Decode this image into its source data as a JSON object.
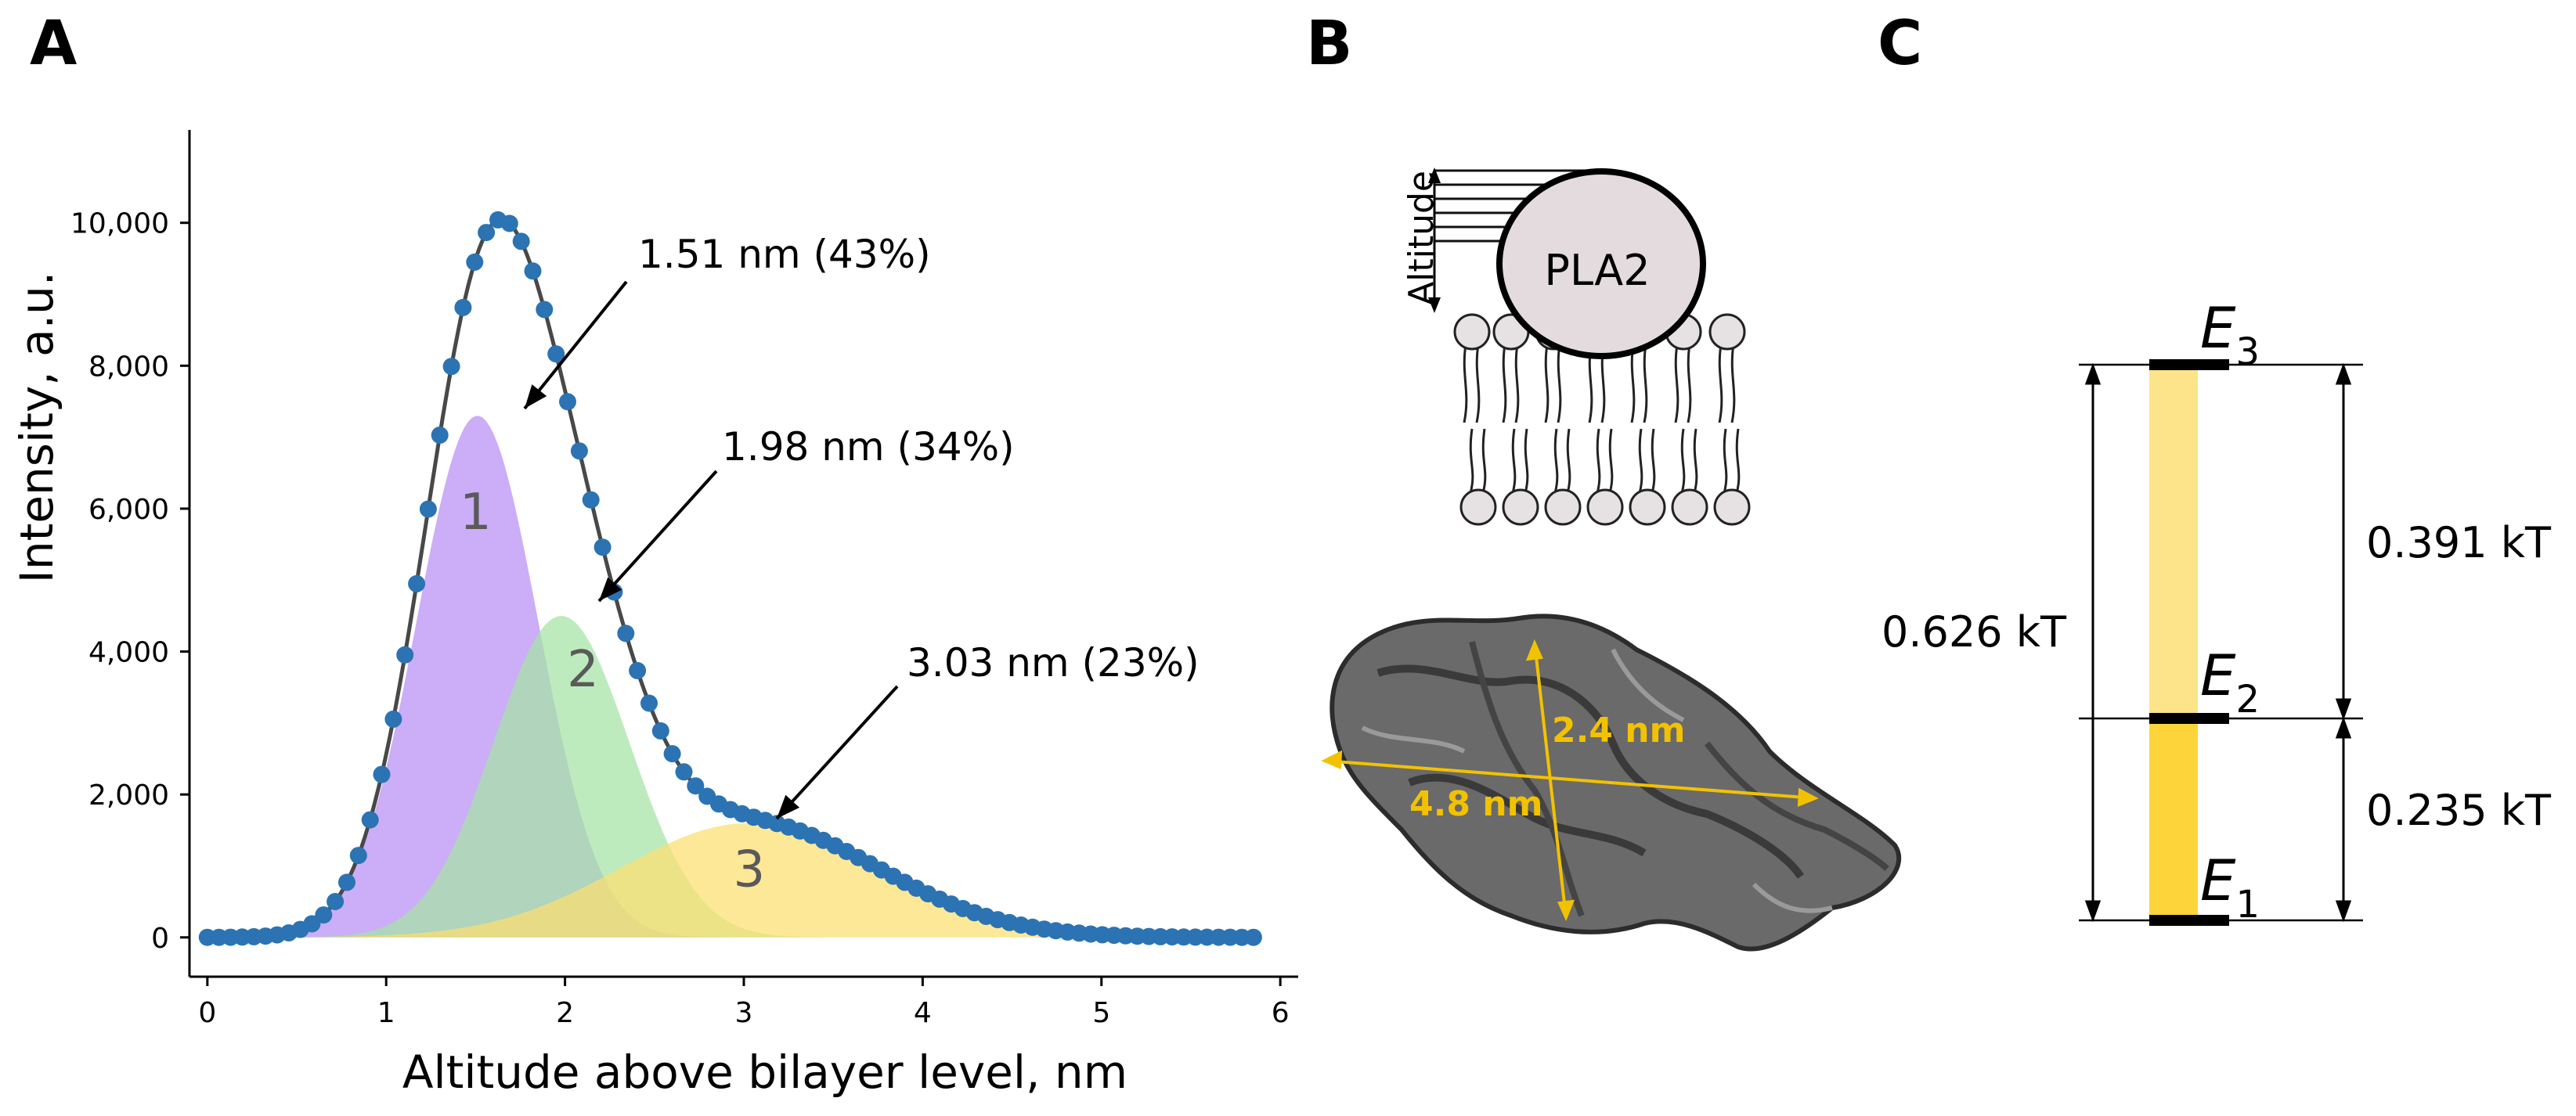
{
  "panels": {
    "a": {
      "letter": "A"
    },
    "b": {
      "letter": "B",
      "protein_label": "PLA2",
      "altitude_label": "Altitude",
      "dim_long": "4.8 nm",
      "dim_short": "2.4 nm"
    },
    "c": {
      "letter": "C",
      "total_gap": "0.626 kT",
      "gap_upper": "0.391 kT",
      "gap_lower": "0.235 kT"
    }
  },
  "chart_data": {
    "type": "scatter",
    "xlabel": "Altitude above bilayer level, nm",
    "ylabel": "Intensity, a.u.",
    "xlim": [
      -0.1,
      6.1
    ],
    "ylim": [
      -550,
      11300
    ],
    "xticks": [
      0,
      1,
      2,
      3,
      4,
      5,
      6
    ],
    "yticks": [
      0,
      2000,
      4000,
      6000,
      8000,
      10000
    ],
    "ytick_labels": [
      "0",
      "2,000",
      "4,000",
      "6,000",
      "8,000",
      "10,000"
    ],
    "components": [
      {
        "label": "1",
        "center": 1.51,
        "peak": 7300,
        "sigma": 0.34,
        "color": "#b98ef5",
        "annotation": "1.51 nm (43%)"
      },
      {
        "label": "2",
        "center": 1.98,
        "peak": 4500,
        "sigma": 0.38,
        "color": "#a5e3a5",
        "annotation": "1.98 nm (34%)"
      },
      {
        "label": "3",
        "center": 3.03,
        "peak": 1600,
        "sigma": 0.72,
        "color": "#fcdf70",
        "annotation": "3.03 nm (23%)"
      }
    ],
    "points_x_start": 0,
    "points_x_end": 5.85,
    "points_step": 0.065,
    "point_color": "#2b73b3",
    "fit_color": "#484848",
    "grid": false,
    "levels": [
      {
        "name": "E",
        "sub": "1"
      },
      {
        "name": "E",
        "sub": "2"
      },
      {
        "name": "E",
        "sub": "3"
      }
    ],
    "level_values_kT": [
      0,
      0.235,
      0.626
    ]
  }
}
